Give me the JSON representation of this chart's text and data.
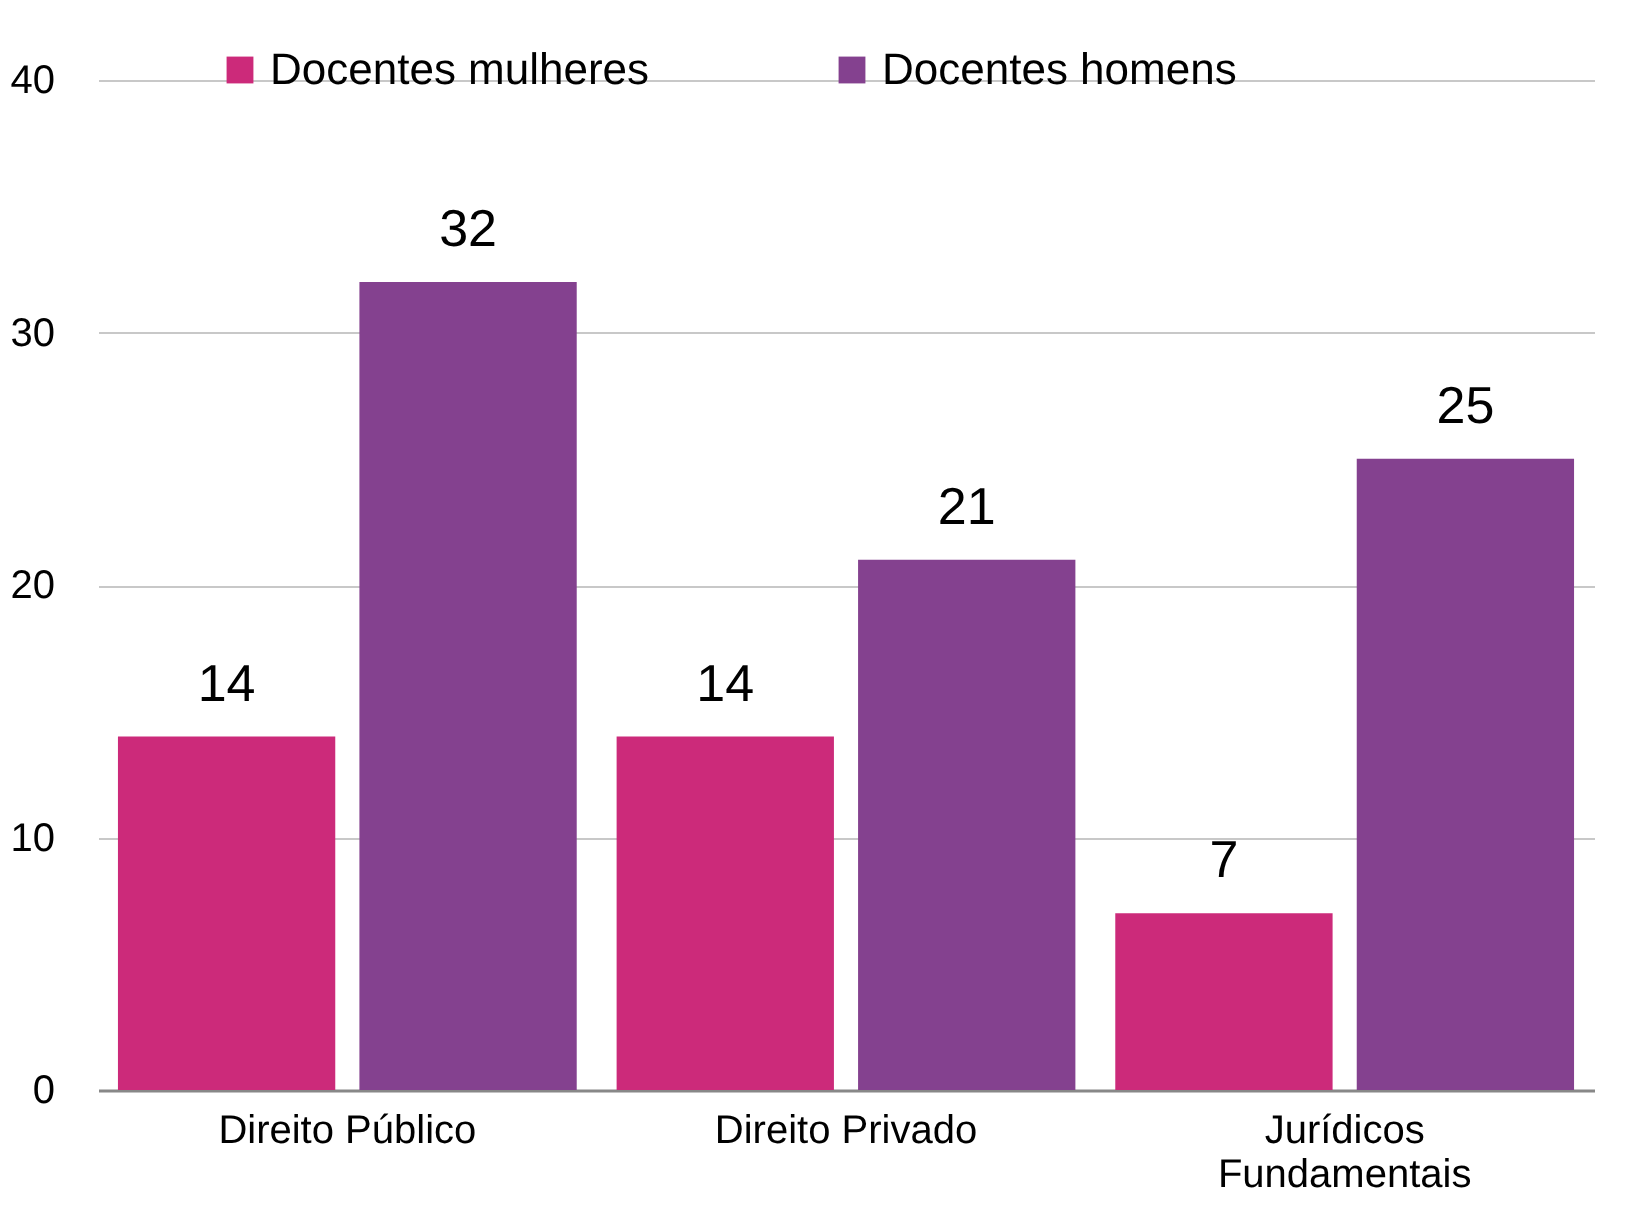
{
  "chart_data": {
    "type": "bar",
    "categories": [
      "Direito Público",
      "Direito Privado",
      "Jurídicos Fundamentais"
    ],
    "series": [
      {
        "name": "Docentes mulheres",
        "color": "#cc2a7a",
        "values": [
          14,
          14,
          7
        ]
      },
      {
        "name": "Docentes homens",
        "color": "#84418f",
        "values": [
          32,
          21,
          25
        ]
      }
    ],
    "ylim": [
      0,
      40
    ],
    "yticks": [
      0,
      10,
      20,
      30,
      40
    ],
    "grid": "y",
    "legend": "top",
    "data_labels": true
  }
}
